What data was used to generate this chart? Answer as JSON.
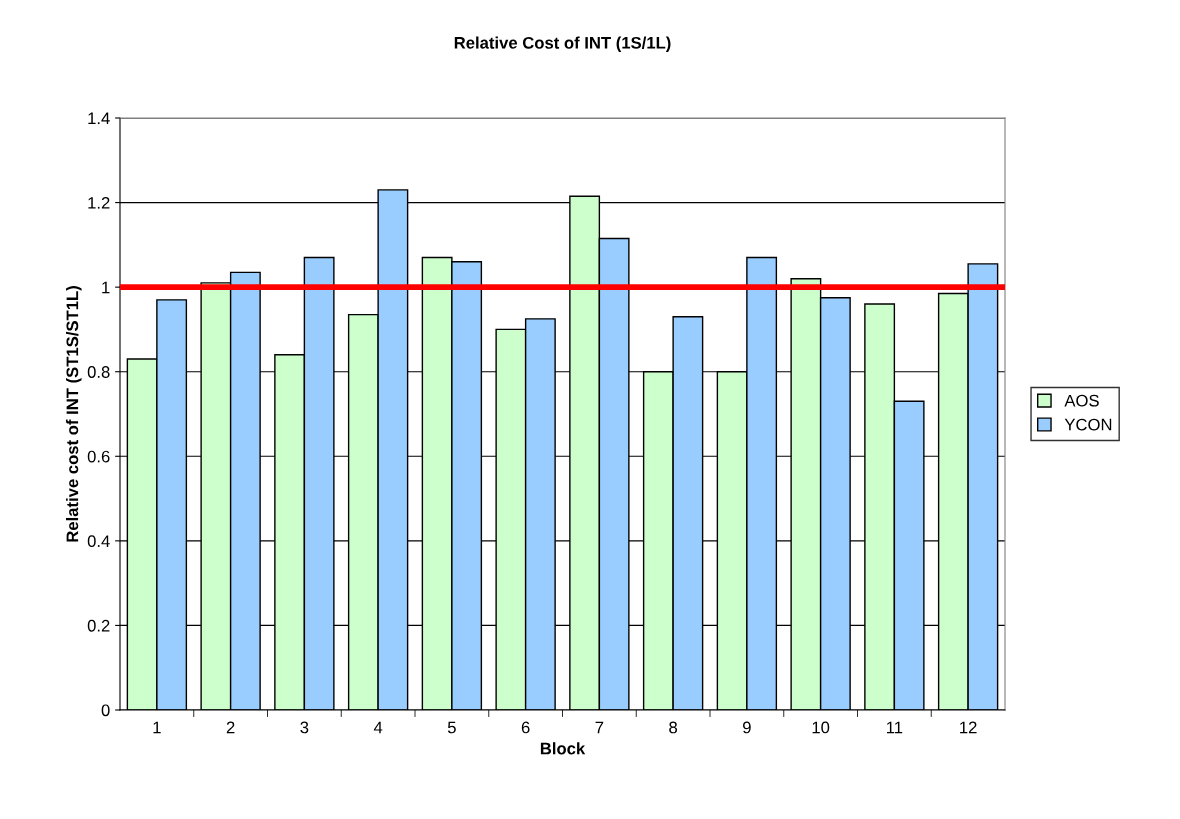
{
  "chart_data": {
    "type": "bar",
    "title": "Relative Cost of INT (1S/1L)",
    "xlabel": "Block",
    "ylabel": "Relative cost of INT (ST1S/ST1L)",
    "categories": [
      "1",
      "2",
      "3",
      "4",
      "5",
      "6",
      "7",
      "8",
      "9",
      "10",
      "11",
      "12"
    ],
    "series": [
      {
        "name": "AOS",
        "color": "#ccffcc",
        "values": [
          0.83,
          1.01,
          0.84,
          0.935,
          1.07,
          0.9,
          1.215,
          0.8,
          0.8,
          1.02,
          0.96,
          0.985
        ]
      },
      {
        "name": "YCON",
        "color": "#99ccff",
        "values": [
          0.97,
          1.035,
          1.07,
          1.23,
          1.06,
          0.925,
          1.115,
          0.93,
          1.07,
          0.975,
          0.73,
          1.055
        ]
      }
    ],
    "ylim": [
      0,
      1.4
    ],
    "yticks": [
      0,
      0.2,
      0.4,
      0.6,
      0.8,
      1,
      1.2,
      1.4
    ],
    "ref_lines": [
      {
        "axis": "y",
        "value": 1,
        "color": "#ff0000"
      }
    ],
    "grid": "y",
    "legend": "right"
  }
}
